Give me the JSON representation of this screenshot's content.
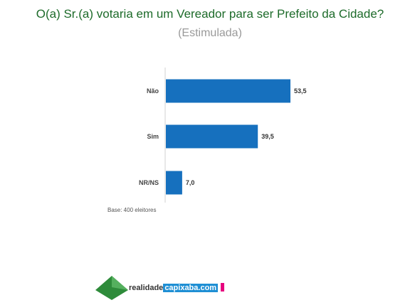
{
  "title": "O(a) Sr.(a) votaria em um Vereador para ser Prefeito da Cidade?",
  "subtitle": "(Estimulada)",
  "base_note": "Base: 400 eleitores",
  "logo": {
    "text_a": "realidade",
    "text_b": "capixaba.com"
  },
  "colors": {
    "bar": "#1670be",
    "title": "#1d6b2a"
  },
  "chart_data": {
    "type": "bar",
    "orientation": "horizontal",
    "categories": [
      "Não",
      "Sim",
      "NR/NS"
    ],
    "values": [
      53.5,
      39.5,
      7.0
    ],
    "value_labels": [
      "53,5",
      "39,5",
      "7,0"
    ],
    "xlim": [
      0,
      60
    ]
  }
}
